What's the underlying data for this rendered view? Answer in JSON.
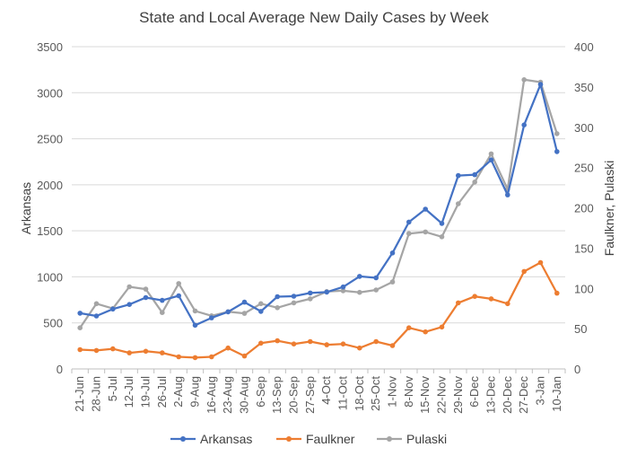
{
  "chart_data": {
    "type": "line",
    "title": "State and Local Average New Daily Cases by Week",
    "ylabel_left": "Arkansas",
    "ylabel_right": "Faulkner, Pulaski",
    "ylim_left": [
      0,
      3500
    ],
    "ylim_right": [
      0,
      400
    ],
    "yticks_left": [
      "0",
      "500",
      "1000",
      "1500",
      "2000",
      "2500",
      "3000",
      "3500"
    ],
    "yticks_right": [
      "0",
      "50",
      "100",
      "150",
      "200",
      "250",
      "300",
      "350",
      "400"
    ],
    "grid": true,
    "legend_position": "bottom",
    "categories": [
      "21-Jun",
      "28-Jun",
      "5-Jul",
      "12-Jul",
      "19-Jul",
      "26-Jul",
      "2-Aug",
      "9-Aug",
      "16-Aug",
      "23-Aug",
      "30-Aug",
      "6-Sep",
      "13-Sep",
      "20-Sep",
      "27-Sep",
      "4-Oct",
      "11-Oct",
      "18-Oct",
      "25-Oct",
      "1-Nov",
      "8-Nov",
      "15-Nov",
      "22-Nov",
      "29-Nov",
      "6-Dec",
      "13-Dec",
      "20-Dec",
      "27-Dec",
      "3-Jan",
      "10-Jan"
    ],
    "series": [
      {
        "name": "Arkansas",
        "axis": "left",
        "color": "#4472c4",
        "values": [
          605,
          575,
          650,
          700,
          775,
          745,
          795,
          475,
          555,
          620,
          725,
          625,
          785,
          790,
          825,
          835,
          890,
          1005,
          990,
          1260,
          1595,
          1735,
          1580,
          2100,
          2110,
          2270,
          1890,
          2650,
          3090,
          2360
        ]
      },
      {
        "name": "Faulkner",
        "axis": "right",
        "color": "#ed7d31",
        "values": [
          24,
          23,
          25,
          20,
          22,
          20,
          15,
          14,
          15,
          26,
          16,
          32,
          35,
          31,
          34,
          30,
          31,
          26,
          34,
          29,
          51,
          46,
          52,
          82,
          90,
          87,
          81,
          121,
          132,
          94
        ]
      },
      {
        "name": "Pulaski",
        "axis": "right",
        "color": "#a5a5a5",
        "values": [
          51,
          81,
          75,
          102,
          99,
          70,
          106,
          72,
          66,
          71,
          69,
          81,
          76,
          82,
          87,
          96,
          97,
          95,
          98,
          108,
          168,
          170,
          164,
          205,
          232,
          267,
          223,
          359,
          356,
          292
        ]
      }
    ]
  }
}
